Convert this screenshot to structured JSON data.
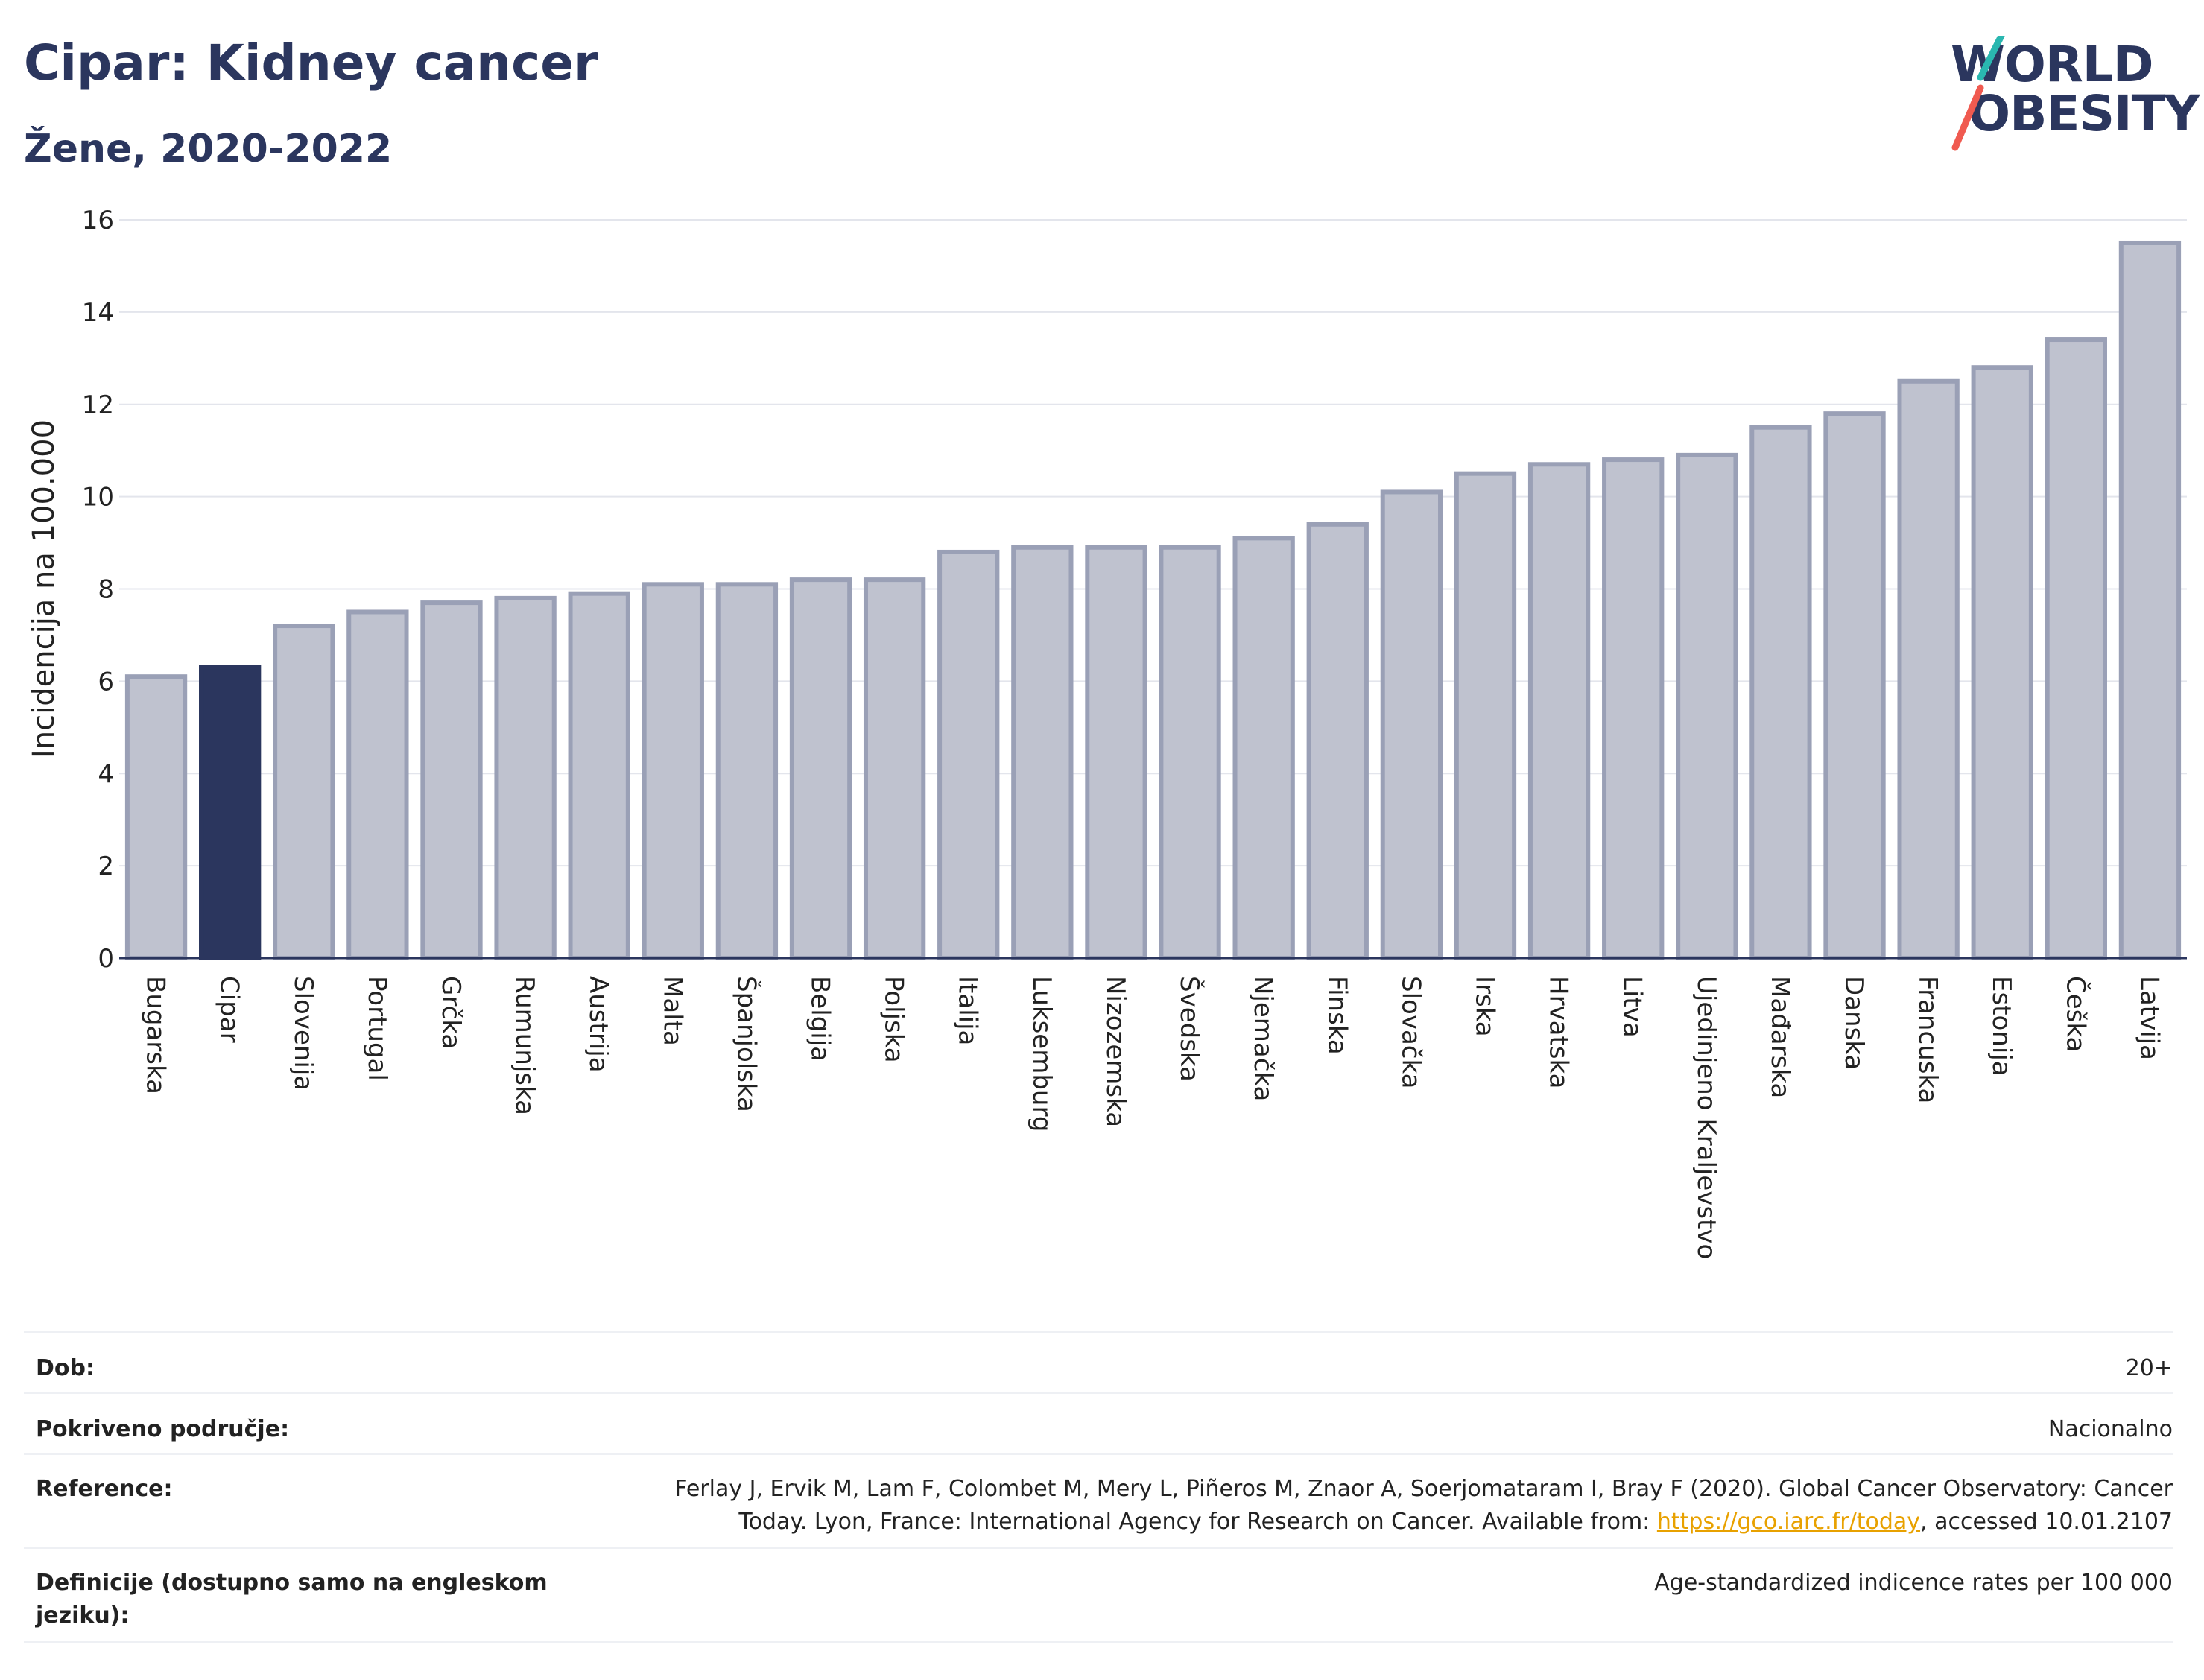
{
  "header": {
    "title": "Cipar: Kidney cancer",
    "subtitle": "Žene, 2020-2022"
  },
  "logo": {
    "line1": "WORLD",
    "line2": "OBESITY",
    "accent_colors": [
      "#2ab7b0",
      "#f05a50"
    ]
  },
  "colors": {
    "bar": "#bfc2cf",
    "bar_stroke": "#9aa0b6",
    "highlight": "#2b365e",
    "grid": "#e3e5ec",
    "text": "#2b365e"
  },
  "chart_data": {
    "type": "bar",
    "ylabel": "Incidencija na 100.000",
    "ylim": [
      0,
      16
    ],
    "yticks": [
      "0",
      "2",
      "4",
      "6",
      "8",
      "10",
      "12",
      "14",
      "16"
    ],
    "highlight": "Cipar",
    "categories": [
      "Bugarska",
      "Cipar",
      "Slovenija",
      "Portugal",
      "Grčka",
      "Rumunjska",
      "Austrija",
      "Malta",
      "Španjolska",
      "Belgija",
      "Poljska",
      "Italija",
      "Luksemburg",
      "Nizozemska",
      "Švedska",
      "Njemačka",
      "Finska",
      "Slovačka",
      "Irska",
      "Hrvatska",
      "Litva",
      "Ujedinjeno Kraljevstvo",
      "Mađarska",
      "Danska",
      "Francuska",
      "Estonija",
      "Češka",
      "Latvija"
    ],
    "values": [
      6.1,
      6.3,
      7.2,
      7.5,
      7.7,
      7.8,
      7.9,
      8.1,
      8.1,
      8.2,
      8.2,
      8.8,
      8.9,
      8.9,
      8.9,
      9.1,
      9.4,
      10.1,
      10.5,
      10.7,
      10.8,
      10.9,
      11.5,
      11.8,
      12.5,
      12.8,
      13.4,
      15.5
    ]
  },
  "meta": {
    "age_label": "Dob:",
    "age_value": "20+",
    "coverage_label": "Pokriveno područje:",
    "coverage_value": "Nacionalno",
    "ref_label": "Reference:",
    "ref_line1": "Ferlay J, Ervik M, Lam F, Colombet M, Mery L, Piñeros M, Znaor A, Soerjomataram I, Bray F (2020). Global Cancer Observatory: Cancer",
    "ref_line2a": "Today. Lyon, France: International Agency for Research on Cancer. Available from: ",
    "ref_link": "https://gco.iarc.fr/today",
    "ref_line2b": ", accessed 10.01.2107",
    "def_label_1": "Definicije (dostupno samo na engleskom",
    "def_label_2": "jeziku):",
    "def_value": "Age-standardized indicence rates per 100 000"
  }
}
